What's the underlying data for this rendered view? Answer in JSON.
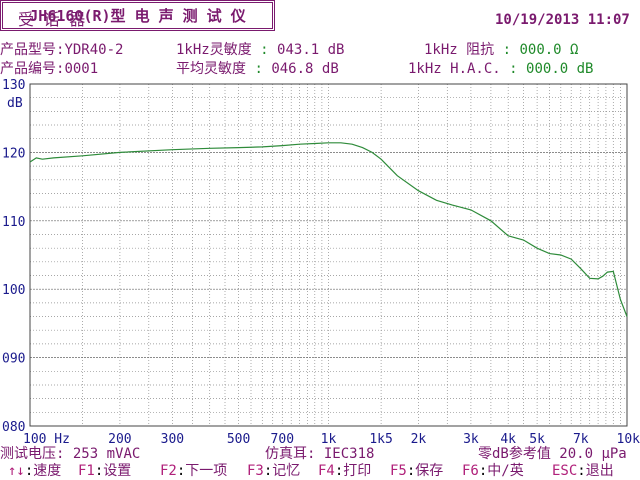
{
  "header": {
    "left_title": "受 话 器",
    "center_title": "JH6160(R)型 电 声 测 试 仪",
    "datetime": "10/19/2013 11:07"
  },
  "info": {
    "model_label": "产品型号:",
    "model_value": "YDR40-2",
    "serial_label": "产品编号:",
    "serial_value": "0001",
    "sens_label": "1kHz灵敏度",
    "sens_sep": ":",
    "sens_value": "043.1 dB",
    "avg_label": "平均灵敏度",
    "avg_sep": ":",
    "avg_value": "046.8 dB",
    "imp_label": "1kHz 阻抗",
    "imp_sep": ":",
    "imp_value": "000.0 Ω",
    "hac_label": "1kHz H.A.C.",
    "hac_sep": ":",
    "hac_value": "000.0 dB"
  },
  "chart_data": {
    "type": "line",
    "ylabel": "dB",
    "ylim": [
      80,
      130
    ],
    "yticks": [
      "130",
      "120",
      "110",
      "100",
      "090",
      "080"
    ],
    "xscale": "log",
    "xlim": [
      100,
      10000
    ],
    "xticks": [
      {
        "v": 100,
        "label": "100 Hz"
      },
      {
        "v": 200,
        "label": "200"
      },
      {
        "v": 300,
        "label": "300"
      },
      {
        "v": 500,
        "label": "500"
      },
      {
        "v": 700,
        "label": "700"
      },
      {
        "v": 1000,
        "label": "1k"
      },
      {
        "v": 1500,
        "label": "1k5"
      },
      {
        "v": 2000,
        "label": "2k"
      },
      {
        "v": 3000,
        "label": "3k"
      },
      {
        "v": 4000,
        "label": "4k"
      },
      {
        "v": 5000,
        "label": "5k"
      },
      {
        "v": 7000,
        "label": "7k"
      },
      {
        "v": 10000,
        "label": "10k"
      }
    ],
    "grid": true,
    "line_color": "#2e8b3a",
    "series": [
      {
        "x": [
          100,
          105,
          110,
          120,
          150,
          200,
          300,
          400,
          500,
          600,
          700,
          800,
          900,
          1000,
          1100,
          1200,
          1300,
          1400,
          1500,
          1700,
          2000,
          2300,
          2600,
          3000,
          3500,
          4000,
          4500,
          5000,
          5500,
          6000,
          6500,
          7000,
          7500,
          8000,
          8300,
          8600,
          9000,
          9500,
          10000
        ],
        "y": [
          118.6,
          119.2,
          119.0,
          119.2,
          119.5,
          120.0,
          120.4,
          120.6,
          120.7,
          120.8,
          121.0,
          121.2,
          121.3,
          121.4,
          121.4,
          121.2,
          120.7,
          120.0,
          119.0,
          116.6,
          114.4,
          113.0,
          112.3,
          111.6,
          110.0,
          107.8,
          107.2,
          106.0,
          105.2,
          105.0,
          104.4,
          103.0,
          101.6,
          101.5,
          101.9,
          102.5,
          102.6,
          98.5,
          96.0
        ]
      }
    ]
  },
  "footer": {
    "voltage_label": "测试电压:",
    "voltage_value": "253 mVAC",
    "ear_label": "仿真耳:",
    "ear_value": "IEC318",
    "ref_label": "零dB参考值",
    "ref_value": "20.0 μPa"
  },
  "keys": [
    {
      "key": "↑↓",
      "label": "速度"
    },
    {
      "key": "F1",
      "label": "设置"
    },
    {
      "key": "F2",
      "label": "下一项"
    },
    {
      "key": "F3",
      "label": "记忆"
    },
    {
      "key": "F4",
      "label": "打印"
    },
    {
      "key": "F5",
      "label": "保存"
    },
    {
      "key": "F6",
      "label": "中/英"
    },
    {
      "key": "ESC",
      "label": "退出"
    }
  ]
}
